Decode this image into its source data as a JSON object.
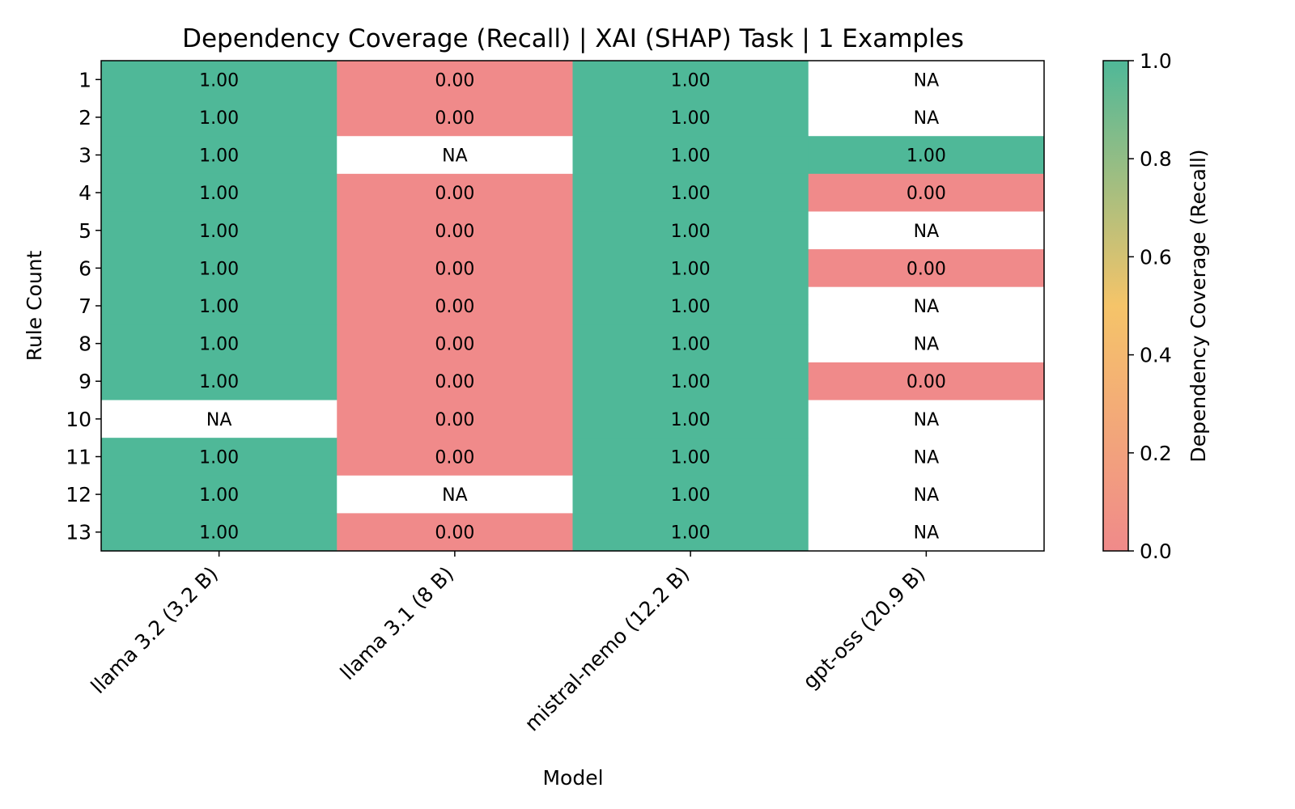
{
  "chart_data": {
    "type": "heatmap",
    "title": "Dependency Coverage (Recall) | XAI (SHAP) Task | 1 Examples",
    "xlabel": "Model",
    "ylabel": "Rule Count",
    "colorbar_label": "Dependency Coverage (Recall)",
    "colorbar_ticks": [
      "0.0",
      "0.2",
      "0.4",
      "0.6",
      "0.8",
      "1.0"
    ],
    "colorbar_range": [
      0,
      1
    ],
    "colormap": [
      "#f08a8a",
      "#f5c469",
      "#4fb898"
    ],
    "na_color": "#ffffff",
    "na_text": "NA",
    "columns": [
      "llama 3.2 (3.2 B)",
      "llama 3.1 (8 B)",
      "mistral-nemo (12.2 B)",
      "gpt-oss (20.9 B)"
    ],
    "rows": [
      "1",
      "2",
      "3",
      "4",
      "5",
      "6",
      "7",
      "8",
      "9",
      "10",
      "11",
      "12",
      "13"
    ],
    "values": [
      [
        1.0,
        0.0,
        1.0,
        null
      ],
      [
        1.0,
        0.0,
        1.0,
        null
      ],
      [
        1.0,
        null,
        1.0,
        1.0
      ],
      [
        1.0,
        0.0,
        1.0,
        0.0
      ],
      [
        1.0,
        0.0,
        1.0,
        null
      ],
      [
        1.0,
        0.0,
        1.0,
        0.0
      ],
      [
        1.0,
        0.0,
        1.0,
        null
      ],
      [
        1.0,
        0.0,
        1.0,
        null
      ],
      [
        1.0,
        0.0,
        1.0,
        0.0
      ],
      [
        null,
        0.0,
        1.0,
        null
      ],
      [
        1.0,
        0.0,
        1.0,
        null
      ],
      [
        1.0,
        null,
        1.0,
        null
      ],
      [
        1.0,
        0.0,
        1.0,
        null
      ]
    ]
  }
}
